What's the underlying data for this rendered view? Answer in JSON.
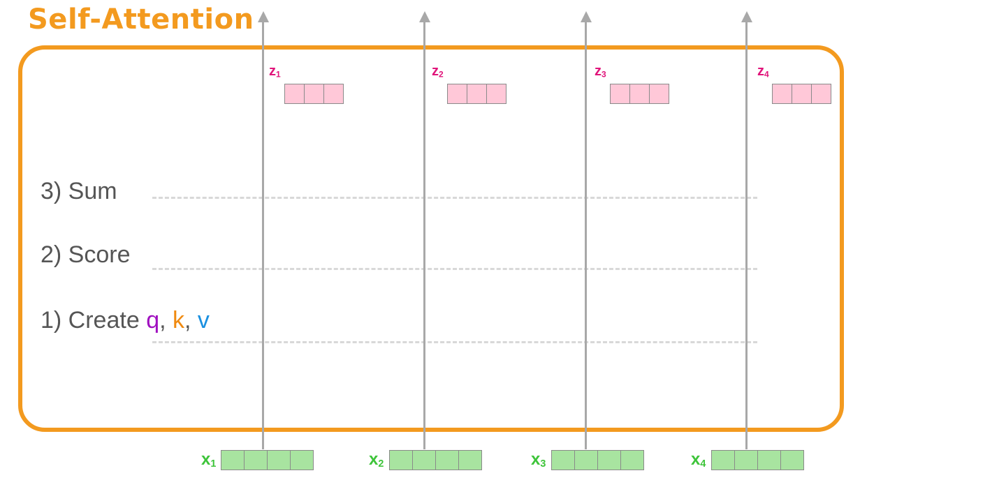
{
  "title": "Self-Attention",
  "steps": {
    "sum": "3) Sum",
    "score": "2) Score",
    "create": "1) Create",
    "q": "q",
    "k": "k",
    "v": "v",
    "sep": ","
  },
  "outputs": [
    {
      "base": "z",
      "sub": "1"
    },
    {
      "base": "z",
      "sub": "2"
    },
    {
      "base": "z",
      "sub": "3"
    },
    {
      "base": "z",
      "sub": "4"
    }
  ],
  "inputs": [
    {
      "base": "x",
      "sub": "1"
    },
    {
      "base": "x",
      "sub": "2"
    },
    {
      "base": "x",
      "sub": "3"
    },
    {
      "base": "x",
      "sub": "4"
    }
  ],
  "colors": {
    "frame": "#f39a1f",
    "output_vector": "#ffc8d8",
    "input_vector": "#a8e4a0",
    "output_label": "#e0147a",
    "input_label": "#3ec43a",
    "q": "#a010c0",
    "k": "#f08a10",
    "v": "#1a90e0",
    "arrow": "#a8a8a8"
  }
}
